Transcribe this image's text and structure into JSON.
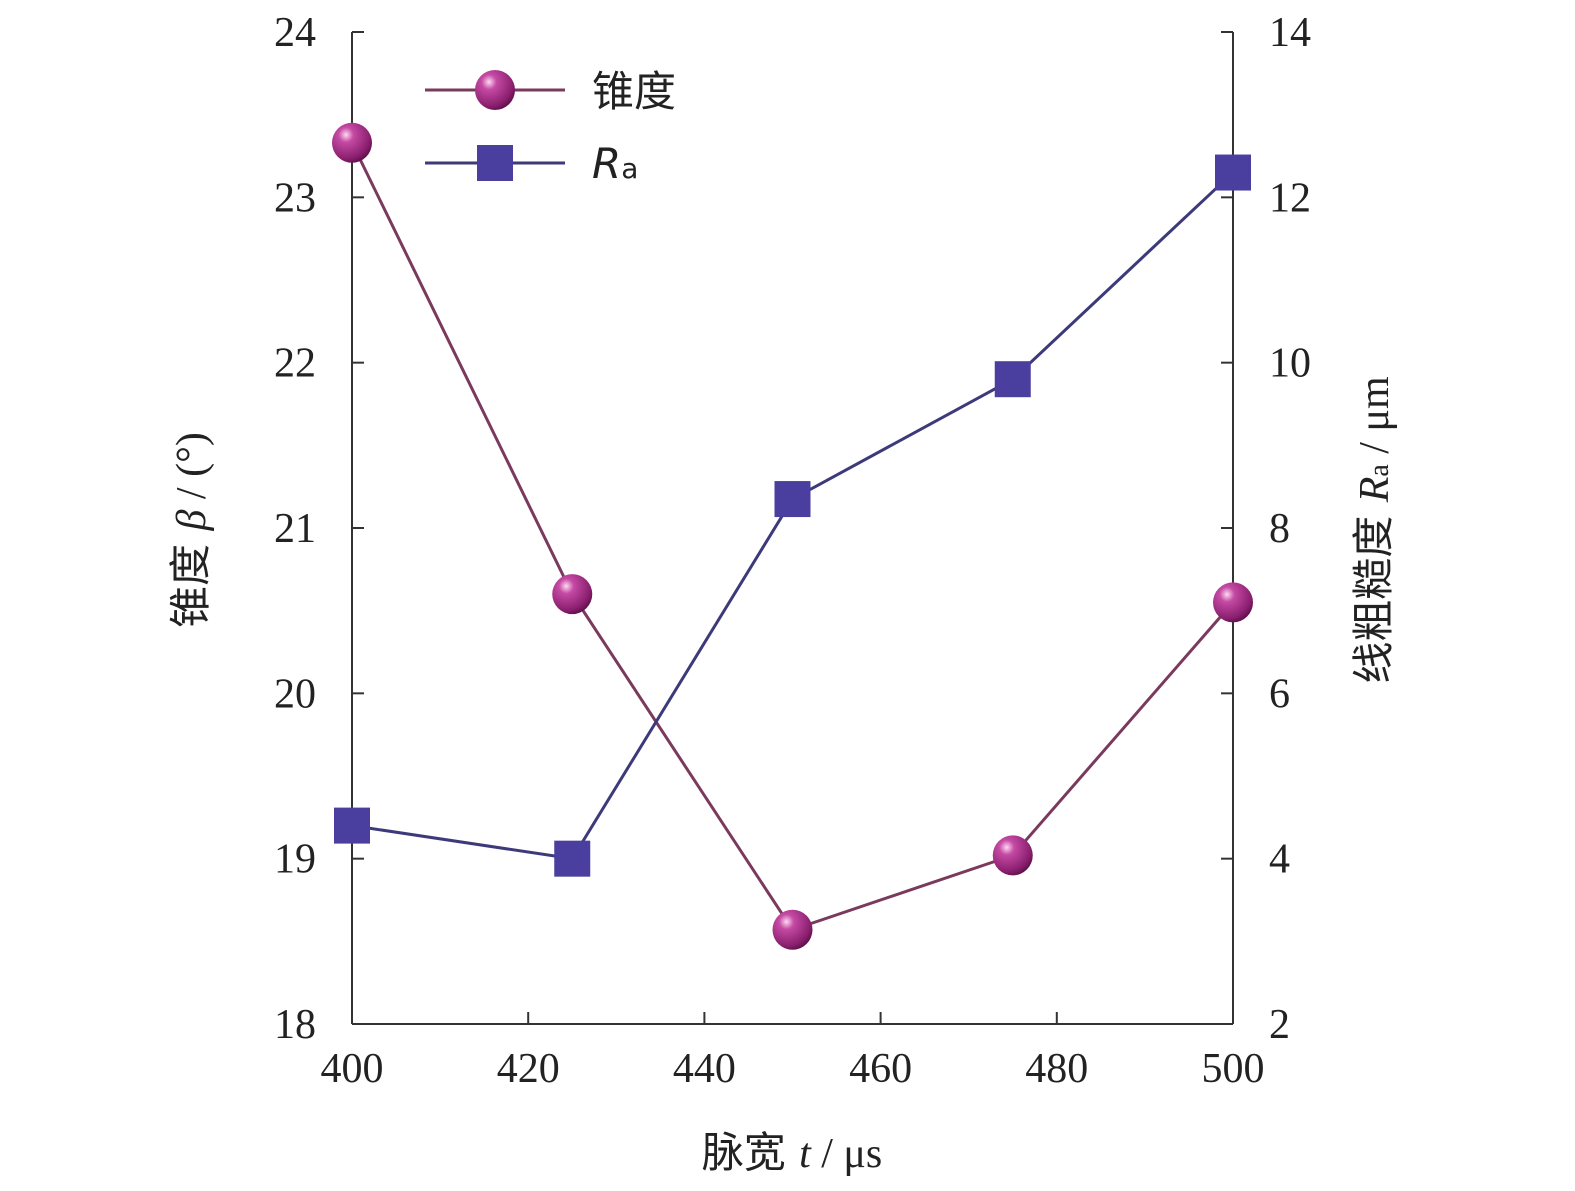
{
  "chart_data": {
    "type": "line",
    "x": [
      400,
      425,
      450,
      475,
      500
    ],
    "xlim": [
      400,
      500
    ],
    "xticks": [
      "400",
      "420",
      "440",
      "460",
      "480",
      "500"
    ],
    "xlabel": {
      "main": "脉宽 ",
      "var": "t",
      "unit": " / μs"
    },
    "y_left": {
      "lim": [
        18,
        24
      ],
      "ticks": [
        "18",
        "19",
        "20",
        "21",
        "22",
        "23",
        "24"
      ],
      "label": {
        "main": "锥度 ",
        "var": "β",
        "unit": " / (°)"
      }
    },
    "y_right": {
      "lim": [
        2,
        14
      ],
      "ticks": [
        "2",
        "4",
        "6",
        "8",
        "10",
        "12",
        "14"
      ],
      "label": {
        "main": "线粗糙度 ",
        "var": "R",
        "sub": "a",
        "unit": " / μm"
      }
    },
    "series": [
      {
        "name": "锥度",
        "axis": "left",
        "marker": "sphere",
        "color": "#9c2a7e",
        "line_color": "#7a3a5e",
        "values": [
          23.33,
          20.6,
          18.57,
          19.02,
          20.55
        ]
      },
      {
        "name_var": "R",
        "name_sub": "a",
        "axis": "right",
        "marker": "square",
        "color": "#4a3f9f",
        "line_color": "#3d3a7a",
        "values": [
          4.4,
          4.0,
          8.35,
          9.8,
          12.3
        ]
      }
    ],
    "legend_position": "top-left",
    "grid": false
  }
}
